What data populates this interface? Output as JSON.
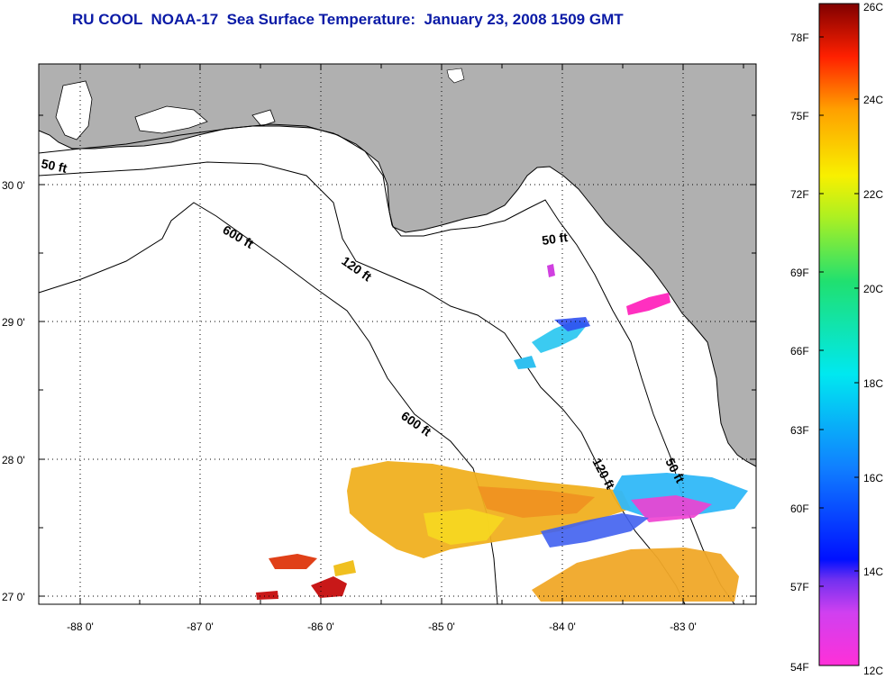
{
  "title": "RU COOL  NOAA-17  Sea Surface Temperature:  January 23, 2008 1509 GMT",
  "axes": {
    "lon_ticks": [
      "-88 0'",
      "-87 0'",
      "-86 0'",
      "-85 0'",
      "-84 0'",
      "-83 0'"
    ],
    "lat_ticks": [
      "30 0'",
      "29 0'",
      "28 0'",
      "27 0'"
    ]
  },
  "contours": [
    {
      "label": "50 ft"
    },
    {
      "label": "120 ft"
    },
    {
      "label": "600 ft"
    },
    {
      "label": "600 ft"
    },
    {
      "label": "50 ft"
    },
    {
      "label": "120 ft"
    },
    {
      "label": "50 ft"
    }
  ],
  "colorbar": {
    "fahrenheit_labels": [
      "78F",
      "75F",
      "72F",
      "69F",
      "66F",
      "63F",
      "60F",
      "57F",
      "54F"
    ],
    "celsius_labels": [
      "26C",
      "24C",
      "22C",
      "20C",
      "18C",
      "16C",
      "14C",
      "12C"
    ],
    "min_c": 12,
    "max_c": 26
  },
  "colors": {
    "title": "#0a1aa6",
    "land": "#b0b0b0",
    "warm": "#f0a020",
    "cool": "#2fc8f0",
    "hot": "#c01010",
    "cold": "#ff30c0"
  }
}
